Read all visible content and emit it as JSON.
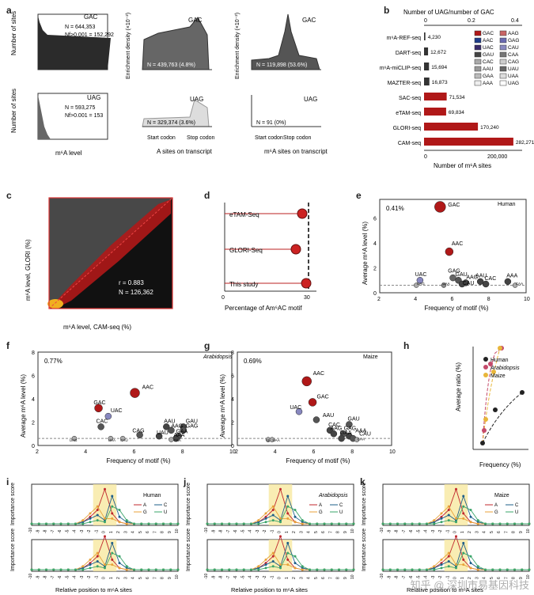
{
  "panel_labels": [
    "a",
    "b",
    "c",
    "d",
    "e",
    "f",
    "g",
    "h",
    "i",
    "j",
    "k"
  ],
  "a": {
    "gac_hist": {
      "label": "GAC",
      "n_line": "N = 644,353",
      "nf_line": "Nf>0.001 = 152,292"
    },
    "uag_hist": {
      "label": "UAG",
      "n_line": "N = 593,275",
      "nf_line": "Nf>0.001 = 153"
    },
    "gac_a": {
      "label": "GAC",
      "n": "N = 439,763 (4.8%)"
    },
    "gac_m6a": {
      "label": "GAC",
      "n": "N = 119,898 (53.6%)"
    },
    "uag_a": {
      "label": "UAG",
      "n": "N = 329,374 (3.6%)"
    },
    "uag_m6a": {
      "label": "UAG",
      "n": "N = 91 (0%)"
    },
    "ylab_sites": "Number of sites",
    "ylab_enrich_a": "Enrichment density (×10⁻²)",
    "ylab_enrich_m": "Enrichment density (×10⁻²)",
    "xlab_m6a": "m⁶A level",
    "xlab_a": "A sites on transcript",
    "xlab_m": "m⁶A sites on transcript",
    "start": "Start codon",
    "stop": "Stop codon"
  },
  "b": {
    "title": "Number of UAG/number of GAC",
    "xlabel": "Number of m⁶A sites",
    "top_ticks": [
      "0",
      "0.2",
      "0.4"
    ],
    "bottom_ticks": [
      "0",
      "200,000"
    ],
    "methods": [
      "m⁶A-REF-seq",
      "DART-seq",
      "m⁶A-miCLIP-seq",
      "MAZTER-seq",
      "SAC-seq",
      "eTAM-seq",
      "GLORI-seq",
      "CAM-seq"
    ],
    "counts": [
      "4,230",
      "12,672",
      "15,694",
      "16,873",
      "71,534",
      "69,834",
      "170,240",
      "282,271"
    ],
    "legend": [
      "GAC",
      "AAG",
      "AAC",
      "GAG",
      "UAC",
      "CAU",
      "GAU",
      "CAA",
      "CAC",
      "CAG",
      "AAU",
      "UAU",
      "GAA",
      "UAA",
      "AAA",
      "UAG"
    ]
  },
  "c": {
    "ylabel": "m⁶A level, GLORI (%)",
    "xlabel": "m⁶A level, CAM-seq (%)",
    "r": "r = 0.883",
    "n": "N = 126,362",
    "ticks": [
      "0",
      "25",
      "50",
      "75",
      "100"
    ]
  },
  "d": {
    "methods": [
      "eTAM-Seq",
      "GLORI-Seq",
      "This study"
    ],
    "xlabel": "Percentage of Am⁶AC motif",
    "ticks": [
      "0",
      "30"
    ]
  },
  "e": {
    "title": "Human",
    "pct": "0.41%",
    "ylabel": "Average m⁶A level (%)",
    "xlabel": "Frequency of motif (%)",
    "xticks": [
      "2",
      "4",
      "6",
      "8",
      "10"
    ],
    "yticks": [
      "0",
      "2",
      "4",
      "6"
    ],
    "points": [
      "GAC",
      "AAC",
      "GAG",
      "GAU",
      "UAC",
      "AAG",
      "AAU",
      "CAC",
      "AAA",
      "CAU",
      "UAA",
      "UAG",
      "CAA"
    ]
  },
  "f": {
    "title": "Arabidopsis",
    "pct": "0.77%",
    "ylabel": "Average m⁶A level (%)",
    "xlabel": "Frequency of motif (%)",
    "xticks": [
      "2",
      "4",
      "6",
      "8",
      "10"
    ],
    "yticks": [
      "0",
      "2",
      "4",
      "6",
      "8"
    ],
    "points": [
      "AAC",
      "GAC",
      "UAC",
      "CAC",
      "AAU",
      "GAU",
      "CAG",
      "AAG",
      "GAG",
      "UAU",
      "GAA",
      "AAA",
      "UAG",
      "UAA",
      "CAU",
      "CAA"
    ]
  },
  "g": {
    "title": "Maize",
    "pct": "0.69%",
    "ylabel": "Average m⁶A level (%)",
    "xlabel": "Frequency of motif (%)",
    "xticks": [
      "2",
      "4",
      "6",
      "8",
      "10"
    ],
    "yticks": [
      "0",
      "2",
      "4",
      "6",
      "8"
    ],
    "points": [
      "AAC",
      "GAC",
      "UAC",
      "AAU",
      "GAU",
      "CAC",
      "GAG",
      "AAG",
      "AAA",
      "GAA",
      "CAU",
      "UAG",
      "UAA",
      "CAA"
    ]
  },
  "h": {
    "ylabel": "Average ratio (%)",
    "xlabel": "Frequency (%)",
    "legend": [
      "Human",
      "Arabidopsis",
      "Maize"
    ],
    "xticks": [
      "0",
      "8",
      "16"
    ],
    "yticks": [
      "0",
      "15",
      "30",
      "45"
    ]
  },
  "ijk": {
    "i_title": "Human",
    "j_title": "Arabidopsis",
    "k_title": "Maize",
    "ylabel": "Importance score",
    "xlabel": "Relative position to m⁶A sites",
    "legend": [
      "A",
      "C",
      "G",
      "U"
    ],
    "positions": [
      "-10",
      "-9",
      "-8",
      "-7",
      "-6",
      "-5",
      "-4",
      "-3",
      "-2",
      "-1",
      "0",
      "1",
      "2",
      "3",
      "4",
      "5",
      "6",
      "7",
      "8",
      "9",
      "10"
    ]
  },
  "colors": {
    "A": "#c0272d",
    "C": "#1e5f8a",
    "G": "#e8a23a",
    "U": "#3aa46a",
    "gac": "#555555",
    "uag_fill": "#cccccc",
    "maize": "#e8b63a",
    "human": "#222222",
    "arab": "#c44a6a"
  }
}
